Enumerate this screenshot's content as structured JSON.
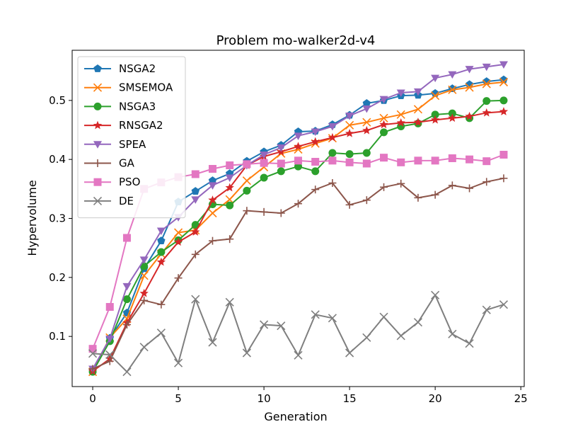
{
  "chart_data": {
    "type": "line",
    "title": "Problem mo-walker2d-v4",
    "xlabel": "Generation",
    "ylabel": "Hypervolume",
    "xlim": [
      -1.2,
      25.2
    ],
    "ylim": [
      0.015,
      0.585
    ],
    "xticks": [
      0,
      5,
      10,
      15,
      20,
      25
    ],
    "yticks": [
      0.1,
      0.2,
      0.3,
      0.4,
      0.5
    ],
    "ytick_labels": [
      "0.1",
      "0.2",
      "0.3",
      "0.4",
      "0.5"
    ],
    "legend_position": "upper-left",
    "x": [
      0,
      1,
      2,
      3,
      4,
      5,
      6,
      7,
      8,
      9,
      10,
      11,
      12,
      13,
      14,
      15,
      16,
      17,
      18,
      19,
      20,
      21,
      22,
      23,
      24
    ],
    "series": [
      {
        "name": "NSGA2",
        "color": "#1f77b4",
        "marker": "pentagon",
        "values": [
          0.043,
          0.097,
          0.14,
          0.215,
          0.262,
          0.328,
          0.346,
          0.364,
          0.376,
          0.397,
          0.413,
          0.424,
          0.447,
          0.448,
          0.459,
          0.475,
          0.495,
          0.5,
          0.508,
          0.509,
          0.512,
          0.52,
          0.527,
          0.532,
          0.535
        ]
      },
      {
        "name": "SMSEMOA",
        "color": "#ff7f0e",
        "marker": "x",
        "values": [
          0.04,
          0.098,
          0.13,
          0.203,
          0.24,
          0.276,
          0.28,
          0.309,
          0.332,
          0.364,
          0.387,
          0.41,
          0.417,
          0.427,
          0.436,
          0.458,
          0.463,
          0.47,
          0.476,
          0.485,
          0.508,
          0.518,
          0.522,
          0.528,
          0.531
        ]
      },
      {
        "name": "NSGA3",
        "color": "#2ca02c",
        "marker": "circle",
        "values": [
          0.04,
          0.092,
          0.163,
          0.219,
          0.243,
          0.263,
          0.289,
          0.324,
          0.322,
          0.347,
          0.369,
          0.38,
          0.388,
          0.38,
          0.411,
          0.409,
          0.411,
          0.446,
          0.456,
          0.461,
          0.476,
          0.478,
          0.47,
          0.499,
          0.5
        ]
      },
      {
        "name": "RNSGA2",
        "color": "#d62728",
        "marker": "star",
        "values": [
          0.041,
          0.062,
          0.123,
          0.173,
          0.226,
          0.26,
          0.277,
          0.331,
          0.352,
          0.39,
          0.405,
          0.413,
          0.422,
          0.43,
          0.437,
          0.444,
          0.449,
          0.459,
          0.462,
          0.463,
          0.467,
          0.47,
          0.473,
          0.479,
          0.481
        ]
      },
      {
        "name": "SPEA",
        "color": "#9467bd",
        "marker": "triangle-down",
        "values": [
          0.045,
          0.096,
          0.185,
          0.23,
          0.279,
          0.302,
          0.332,
          0.356,
          0.369,
          0.39,
          0.408,
          0.42,
          0.44,
          0.447,
          0.456,
          0.474,
          0.486,
          0.502,
          0.513,
          0.515,
          0.538,
          0.544,
          0.553,
          0.557,
          0.561
        ]
      },
      {
        "name": "GA",
        "color": "#8c564b",
        "marker": "plus",
        "values": [
          0.045,
          0.058,
          0.12,
          0.161,
          0.154,
          0.199,
          0.239,
          0.262,
          0.265,
          0.313,
          0.311,
          0.309,
          0.325,
          0.349,
          0.36,
          0.323,
          0.331,
          0.353,
          0.359,
          0.335,
          0.34,
          0.356,
          0.351,
          0.362,
          0.368
        ]
      },
      {
        "name": "PSO",
        "color": "#e377c2",
        "marker": "square",
        "values": [
          0.079,
          0.15,
          0.267,
          0.35,
          0.361,
          0.37,
          0.375,
          0.384,
          0.39,
          0.392,
          0.394,
          0.393,
          0.398,
          0.396,
          0.398,
          0.395,
          0.393,
          0.403,
          0.395,
          0.398,
          0.398,
          0.402,
          0.4,
          0.397,
          0.408
        ]
      },
      {
        "name": "DE",
        "color": "#7f7f7f",
        "marker": "x",
        "values": [
          0.071,
          0.069,
          0.04,
          0.082,
          0.106,
          0.055,
          0.163,
          0.09,
          0.158,
          0.072,
          0.12,
          0.118,
          0.068,
          0.137,
          0.131,
          0.072,
          0.098,
          0.133,
          0.101,
          0.124,
          0.17,
          0.104,
          0.088,
          0.145,
          0.154
        ]
      }
    ]
  }
}
